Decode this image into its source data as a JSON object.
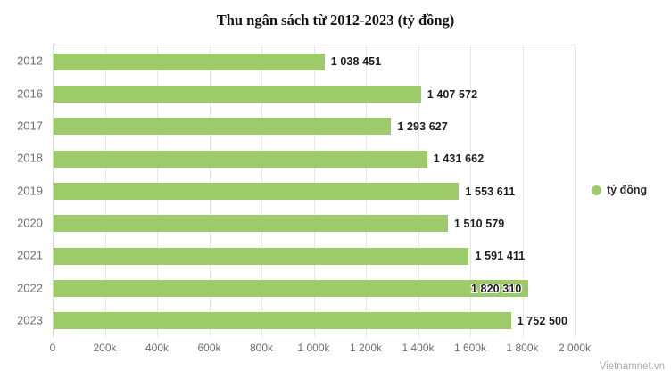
{
  "title": "Thu ngân sách từ 2012-2023 (tỷ đồng)",
  "legend": {
    "label": "tỷ đồng",
    "color": "#9ecb6a"
  },
  "watermark": "Vietnamnet.vn",
  "chart_data": {
    "type": "bar",
    "orientation": "horizontal",
    "title": "Thu ngân sách từ 2012-2023 (tỷ đồng)",
    "xlabel": "",
    "ylabel": "",
    "categories": [
      "2012",
      "2016",
      "2017",
      "2018",
      "2019",
      "2020",
      "2021",
      "2022",
      "2023"
    ],
    "values": [
      1038451,
      1407572,
      1293627,
      1431662,
      1553611,
      1510579,
      1591411,
      1820310,
      1752500
    ],
    "value_labels": [
      "1 038 451",
      "1 407 572",
      "1 293 627",
      "1 431 662",
      "1 553 611",
      "1 510 579",
      "1 591 411",
      "1 820 310",
      "1 752 500"
    ],
    "xlim": [
      0,
      2000000
    ],
    "x_ticks": [
      0,
      200000,
      400000,
      600000,
      800000,
      1000000,
      1200000,
      1400000,
      1600000,
      1800000,
      2000000
    ],
    "x_tick_labels": [
      "0",
      "200k",
      "400k",
      "600k",
      "800k",
      "1 000k",
      "1 200k",
      "1 400k",
      "1 600k",
      "1 800k",
      "2 000k"
    ],
    "bar_color": "#9ecb6a",
    "grid": "vertical",
    "legend_position": "right",
    "series": [
      {
        "name": "tỷ đồng",
        "color": "#9ecb6a"
      }
    ]
  }
}
